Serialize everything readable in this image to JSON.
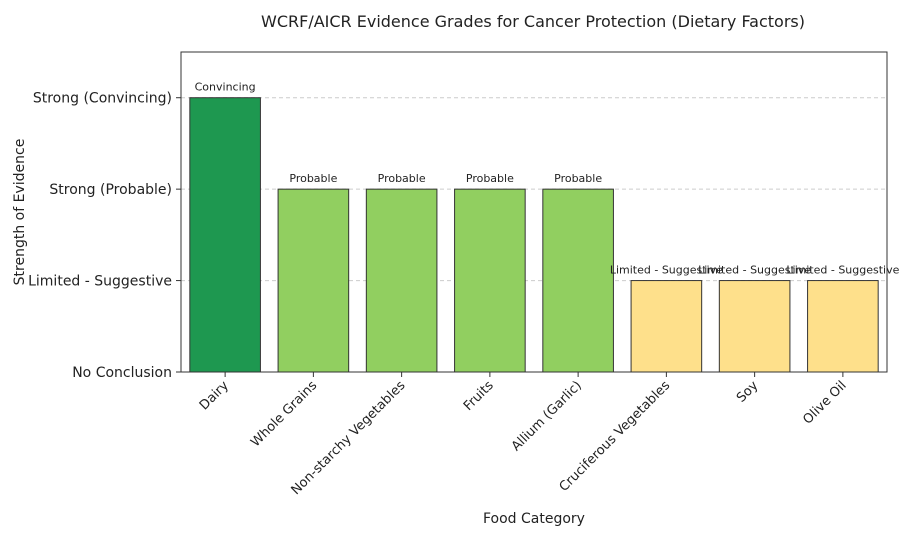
{
  "chart_data": {
    "type": "bar",
    "title": "WCRF/AICR Evidence Grades for Cancer Protection (Dietary Factors)",
    "xlabel": "Food Category",
    "ylabel": "Strength of Evidence",
    "categories": [
      "Dairy",
      "Whole Grains",
      "Non-starchy Vegetables",
      "Fruits",
      "Allium (Garlic)",
      "Cruciferous Vegetables",
      "Soy",
      "Olive Oil"
    ],
    "values": [
      3,
      2,
      2,
      2,
      2,
      1,
      1,
      1
    ],
    "bar_labels": [
      "Convincing",
      "Probable",
      "Probable",
      "Probable",
      "Probable",
      "Limited - Suggestive",
      "Limited - Suggestive",
      "Limited - Suggestive"
    ],
    "bar_colors": [
      "#1e9850",
      "#91cf60",
      "#91cf60",
      "#91cf60",
      "#91cf60",
      "#fee08b",
      "#fee08b",
      "#fee08b"
    ],
    "yticks": [
      0,
      1,
      2,
      3
    ],
    "yticklabels": [
      "No Conclusion",
      "Limited - Suggestive",
      "Strong (Probable)",
      "Strong (Convincing)"
    ],
    "ylim": [
      0,
      3.5
    ],
    "grid": "y-dashed",
    "bar_edge_color": "#333333",
    "grid_color": "#cccccc"
  }
}
